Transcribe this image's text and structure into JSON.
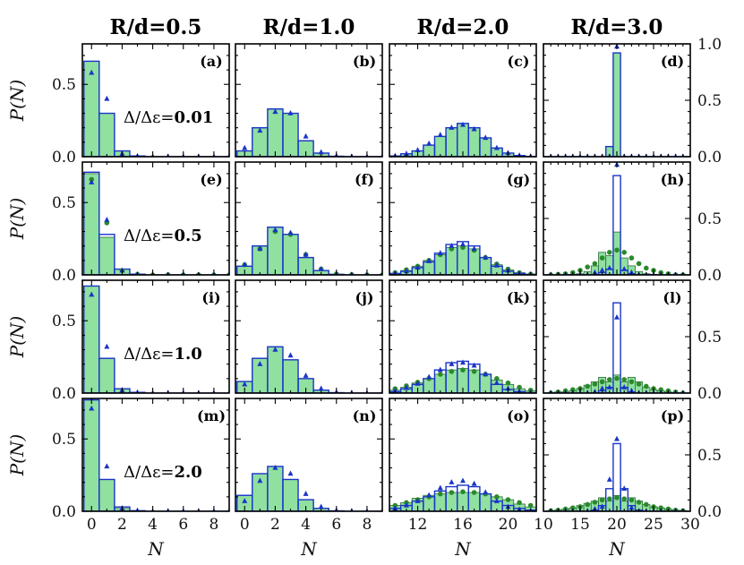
{
  "chart_data": {
    "type": "bar",
    "layout": "4x4 grid of histograms",
    "columns": [
      {
        "title": "R/d=0.5",
        "xlim": [
          -0.6,
          9
        ],
        "xticks": [
          0,
          2,
          4,
          6,
          8
        ]
      },
      {
        "title": "R/d=1.0",
        "xlim": [
          -0.6,
          9
        ],
        "xticks": [
          0,
          2,
          4,
          6,
          8
        ]
      },
      {
        "title": "R/d=2.0",
        "xlim": [
          9.5,
          22.5
        ],
        "xticks": [
          12,
          16,
          20
        ]
      },
      {
        "title": "R/d=3.0",
        "xlim": [
          10,
          30
        ],
        "xticks": [
          10,
          15,
          20,
          25,
          30
        ]
      }
    ],
    "rows": [
      {
        "label": "Δ/Δε=0.01",
        "label_prefix": "Δ/Δε=",
        "label_value": "0.01"
      },
      {
        "label": "Δ/Δε=0.5",
        "label_prefix": "Δ/Δε=",
        "label_value": "0.5"
      },
      {
        "label": "Δ/Δε=1.0",
        "label_prefix": "Δ/Δε=",
        "label_value": "1.0"
      },
      {
        "label": "Δ/Δε=2.0",
        "label_prefix": "Δ/Δε=",
        "label_value": "2.0"
      }
    ],
    "xlabel": "N",
    "ylabel": "P(N)",
    "ylim_left": [
      0,
      0.78
    ],
    "ylim_right": [
      0,
      1.0
    ],
    "yticks_left": [
      "0.0",
      "0.5"
    ],
    "yticks_right_top": [
      "0.0",
      "0.5",
      "1.0"
    ],
    "yticks_right": [
      "0.0",
      "0.5"
    ],
    "colors": {
      "bar_fill": "#90e0a0",
      "bar_edge": "#1a35c8",
      "marker_blue": "#1a35c8",
      "marker_green": "#2a8a2a"
    },
    "panels": [
      {
        "label": "(a)",
        "x": [
          0,
          1,
          2,
          3,
          4,
          5,
          6,
          7,
          8,
          9
        ],
        "green_bars": [
          0.66,
          0.3,
          0.04,
          0.005,
          0,
          0,
          0,
          0,
          0,
          0
        ],
        "blue_bars": [
          0.66,
          0.3,
          0.04,
          0.005,
          0,
          0,
          0,
          0,
          0,
          0
        ],
        "blue_points": [
          0.58,
          0.4,
          0.02,
          0.003,
          0,
          0,
          0,
          0,
          0,
          0
        ],
        "green_points": []
      },
      {
        "label": "(b)",
        "x": [
          0,
          1,
          2,
          3,
          4,
          5,
          6,
          7,
          8,
          9
        ],
        "green_bars": [
          0.04,
          0.2,
          0.33,
          0.3,
          0.11,
          0.025,
          0.003,
          0,
          0,
          0
        ],
        "blue_bars": [
          0.04,
          0.2,
          0.33,
          0.3,
          0.11,
          0.025,
          0.003,
          0,
          0,
          0
        ],
        "blue_points": [
          0.06,
          0.18,
          0.31,
          0.3,
          0.14,
          0.03,
          0.005,
          0.001,
          0,
          0
        ],
        "green_points": []
      },
      {
        "label": "(c)",
        "x": [
          10,
          11,
          12,
          13,
          14,
          15,
          16,
          17,
          18,
          19,
          20,
          21,
          22
        ],
        "green_bars": [
          0.005,
          0.02,
          0.04,
          0.08,
          0.14,
          0.2,
          0.23,
          0.2,
          0.13,
          0.06,
          0.025,
          0.008,
          0.002
        ],
        "blue_bars": [
          0.005,
          0.02,
          0.04,
          0.08,
          0.14,
          0.2,
          0.23,
          0.2,
          0.13,
          0.06,
          0.025,
          0.008,
          0.002
        ],
        "blue_points": [
          0.005,
          0.02,
          0.045,
          0.09,
          0.15,
          0.2,
          0.22,
          0.19,
          0.13,
          0.06,
          0.025,
          0.008,
          0.002
        ],
        "green_points": []
      },
      {
        "label": "(d)",
        "x": [
          11,
          12,
          13,
          14,
          15,
          16,
          17,
          18,
          19,
          20,
          21,
          22,
          23,
          24,
          25,
          26,
          27,
          28,
          29
        ],
        "green_bars": [
          0,
          0,
          0,
          0,
          0,
          0,
          0,
          0,
          0.09,
          0.92,
          0,
          0,
          0,
          0,
          0,
          0,
          0,
          0,
          0
        ],
        "blue_bars": [
          0,
          0,
          0,
          0,
          0,
          0,
          0,
          0,
          0.09,
          0.92,
          0,
          0,
          0,
          0,
          0,
          0,
          0,
          0,
          0
        ],
        "blue_points": [
          0,
          0,
          0,
          0,
          0,
          0,
          0,
          0,
          0,
          0.99,
          0,
          0,
          0,
          0,
          0,
          0,
          0,
          0,
          0
        ],
        "green_points": []
      },
      {
        "label": "(e)",
        "x": [
          0,
          1,
          2,
          3,
          4,
          5,
          6,
          7,
          8,
          9
        ],
        "green_bars": [
          0.7,
          0.26,
          0.04,
          0.005,
          0,
          0,
          0,
          0,
          0,
          0
        ],
        "blue_bars": [
          0.71,
          0.28,
          0.04,
          0.005,
          0,
          0,
          0,
          0,
          0,
          0
        ],
        "blue_points": [
          0.64,
          0.38,
          0.03,
          0.003,
          0,
          0,
          0,
          0,
          0,
          0
        ],
        "green_points": [
          0.66,
          0.36,
          0.03,
          0.004,
          0,
          0,
          0,
          0,
          0,
          0
        ]
      },
      {
        "label": "(f)",
        "x": [
          0,
          1,
          2,
          3,
          4,
          5,
          6,
          7,
          8,
          9
        ],
        "green_bars": [
          0.06,
          0.2,
          0.33,
          0.28,
          0.12,
          0.03,
          0.004,
          0,
          0,
          0
        ],
        "blue_bars": [
          0.06,
          0.2,
          0.33,
          0.28,
          0.12,
          0.03,
          0.004,
          0,
          0,
          0
        ],
        "blue_points": [
          0.07,
          0.18,
          0.31,
          0.29,
          0.14,
          0.04,
          0.006,
          0.001,
          0,
          0
        ],
        "green_points": [
          0.07,
          0.18,
          0.3,
          0.28,
          0.14,
          0.04,
          0.006,
          0.001,
          0,
          0
        ]
      },
      {
        "label": "(g)",
        "x": [
          10,
          11,
          12,
          13,
          14,
          15,
          16,
          17,
          18,
          19,
          20,
          21,
          22
        ],
        "green_bars": [
          0.01,
          0.03,
          0.06,
          0.1,
          0.14,
          0.19,
          0.2,
          0.18,
          0.12,
          0.07,
          0.035,
          0.015,
          0.006
        ],
        "blue_bars": [
          0.01,
          0.025,
          0.05,
          0.09,
          0.15,
          0.21,
          0.23,
          0.2,
          0.12,
          0.06,
          0.025,
          0.01,
          0.003
        ],
        "blue_points": [
          0.01,
          0.025,
          0.05,
          0.095,
          0.15,
          0.2,
          0.21,
          0.18,
          0.12,
          0.065,
          0.03,
          0.01,
          0.003
        ],
        "green_points": [
          0.015,
          0.035,
          0.06,
          0.1,
          0.14,
          0.18,
          0.19,
          0.17,
          0.12,
          0.075,
          0.04,
          0.015,
          0.005
        ]
      },
      {
        "label": "(h)",
        "x": [
          11,
          12,
          13,
          14,
          15,
          16,
          17,
          18,
          19,
          20,
          21,
          22,
          23,
          24,
          25,
          26,
          27,
          28,
          29
        ],
        "green_bars": [
          0,
          0,
          0,
          0.005,
          0.01,
          0.03,
          0.08,
          0.2,
          0.17,
          0.38,
          0.15,
          0.08,
          0.03,
          0.01,
          0.005,
          0,
          0,
          0,
          0
        ],
        "blue_bars": [
          0,
          0,
          0,
          0,
          0,
          0,
          0,
          0.02,
          0.05,
          0.88,
          0.04,
          0.01,
          0,
          0,
          0,
          0,
          0,
          0,
          0
        ],
        "blue_points": [
          0,
          0,
          0,
          0,
          0,
          0,
          0.02,
          0.04,
          0.06,
          0.98,
          0.05,
          0.02,
          0,
          0,
          0,
          0,
          0,
          0,
          0
        ],
        "green_points": [
          0,
          0.005,
          0.01,
          0.02,
          0.04,
          0.07,
          0.1,
          0.15,
          0.2,
          0.22,
          0.2,
          0.15,
          0.1,
          0.06,
          0.04,
          0.02,
          0.01,
          0,
          0
        ]
      },
      {
        "label": "(i)",
        "x": [
          0,
          1,
          2,
          3,
          4,
          5,
          6,
          7,
          8,
          9
        ],
        "green_bars": [
          0.74,
          0.24,
          0.03,
          0.005,
          0,
          0,
          0,
          0,
          0,
          0
        ],
        "blue_bars": [
          0.74,
          0.24,
          0.03,
          0.005,
          0,
          0,
          0,
          0,
          0,
          0
        ],
        "blue_points": [
          0.68,
          0.32,
          0.02,
          0.003,
          0,
          0,
          0,
          0,
          0,
          0
        ],
        "green_points": []
      },
      {
        "label": "(j)",
        "x": [
          0,
          1,
          2,
          3,
          4,
          5,
          6,
          7,
          8,
          9
        ],
        "green_bars": [
          0.08,
          0.24,
          0.32,
          0.23,
          0.1,
          0.02,
          0.003,
          0,
          0,
          0
        ],
        "blue_bars": [
          0.08,
          0.24,
          0.32,
          0.23,
          0.1,
          0.02,
          0.003,
          0,
          0,
          0
        ],
        "blue_points": [
          0.06,
          0.2,
          0.3,
          0.26,
          0.12,
          0.03,
          0.005,
          0.001,
          0,
          0
        ],
        "green_points": []
      },
      {
        "label": "(k)",
        "x": [
          10,
          11,
          12,
          13,
          14,
          15,
          16,
          17,
          18,
          19,
          20,
          21,
          22
        ],
        "green_bars": [
          0.02,
          0.04,
          0.07,
          0.1,
          0.13,
          0.16,
          0.17,
          0.16,
          0.13,
          0.09,
          0.06,
          0.03,
          0.015
        ],
        "blue_bars": [
          0.01,
          0.03,
          0.06,
          0.1,
          0.16,
          0.21,
          0.22,
          0.2,
          0.13,
          0.06,
          0.025,
          0.01,
          0.003
        ],
        "blue_points": [
          0.015,
          0.035,
          0.065,
          0.11,
          0.16,
          0.2,
          0.21,
          0.19,
          0.13,
          0.07,
          0.03,
          0.012,
          0.004
        ],
        "green_points": [
          0.03,
          0.05,
          0.075,
          0.1,
          0.13,
          0.15,
          0.16,
          0.15,
          0.13,
          0.1,
          0.07,
          0.04,
          0.02
        ]
      },
      {
        "label": "(l)",
        "x": [
          11,
          12,
          13,
          14,
          15,
          16,
          17,
          18,
          19,
          20,
          21,
          22,
          23,
          24,
          25,
          26,
          27,
          28,
          29
        ],
        "green_bars": [
          0.005,
          0.01,
          0.01,
          0.02,
          0.04,
          0.07,
          0.1,
          0.14,
          0.1,
          0.16,
          0.1,
          0.14,
          0.1,
          0.05,
          0.03,
          0.02,
          0.01,
          0.005,
          0
        ],
        "blue_bars": [
          0,
          0,
          0,
          0,
          0,
          0,
          0,
          0.02,
          0.05,
          0.8,
          0.05,
          0.01,
          0,
          0,
          0,
          0,
          0,
          0,
          0
        ],
        "blue_points": [
          0,
          0,
          0,
          0,
          0,
          0,
          0.01,
          0.04,
          0.05,
          0.67,
          0.05,
          0.02,
          0,
          0,
          0,
          0,
          0,
          0,
          0
        ],
        "green_points": [
          0,
          0.01,
          0.02,
          0.03,
          0.04,
          0.06,
          0.08,
          0.1,
          0.12,
          0.13,
          0.12,
          0.1,
          0.08,
          0.06,
          0.04,
          0.03,
          0.02,
          0.01,
          0
        ]
      },
      {
        "label": "(m)",
        "x": [
          0,
          1,
          2,
          3,
          4,
          5,
          6,
          7,
          8,
          9
        ],
        "green_bars": [
          0.77,
          0.22,
          0.02,
          0.004,
          0,
          0,
          0,
          0,
          0,
          0
        ],
        "blue_bars": [
          0.77,
          0.22,
          0.03,
          0.004,
          0,
          0,
          0,
          0,
          0,
          0
        ],
        "blue_points": [
          0.71,
          0.31,
          0.02,
          0.003,
          0,
          0,
          0,
          0,
          0,
          0
        ],
        "green_points": []
      },
      {
        "label": "(n)",
        "x": [
          0,
          1,
          2,
          3,
          4,
          5,
          6,
          7,
          8,
          9
        ],
        "green_bars": [
          0.11,
          0.26,
          0.31,
          0.22,
          0.08,
          0.02,
          0.003,
          0,
          0,
          0
        ],
        "blue_bars": [
          0.11,
          0.26,
          0.31,
          0.22,
          0.08,
          0.02,
          0.003,
          0,
          0,
          0
        ],
        "blue_points": [
          0.07,
          0.21,
          0.3,
          0.26,
          0.12,
          0.03,
          0.005,
          0.001,
          0,
          0
        ],
        "green_points": []
      },
      {
        "label": "(o)",
        "x": [
          10,
          11,
          12,
          13,
          14,
          15,
          16,
          17,
          18,
          19,
          20,
          21,
          22
        ],
        "green_bars": [
          0.04,
          0.06,
          0.09,
          0.11,
          0.12,
          0.13,
          0.13,
          0.13,
          0.12,
          0.1,
          0.08,
          0.05,
          0.03
        ],
        "blue_bars": [
          0.02,
          0.04,
          0.07,
          0.1,
          0.14,
          0.17,
          0.18,
          0.17,
          0.12,
          0.07,
          0.04,
          0.02,
          0.008
        ],
        "blue_points": [
          0.02,
          0.04,
          0.07,
          0.11,
          0.16,
          0.2,
          0.21,
          0.19,
          0.13,
          0.07,
          0.03,
          0.012,
          0.004
        ],
        "green_points": [
          0.04,
          0.06,
          0.08,
          0.1,
          0.12,
          0.13,
          0.135,
          0.13,
          0.12,
          0.1,
          0.08,
          0.06,
          0.04
        ]
      },
      {
        "label": "(p)",
        "x": [
          11,
          12,
          13,
          14,
          15,
          16,
          17,
          18,
          19,
          20,
          21,
          22,
          23,
          24,
          25,
          26,
          27,
          28,
          29
        ],
        "green_bars": [
          0.005,
          0.01,
          0.02,
          0.03,
          0.05,
          0.07,
          0.09,
          0.12,
          0.09,
          0.14,
          0.09,
          0.12,
          0.09,
          0.06,
          0.04,
          0.03,
          0.02,
          0.01,
          0.005
        ],
        "blue_bars": [
          0,
          0,
          0,
          0,
          0,
          0,
          0.01,
          0.05,
          0.2,
          0.6,
          0.2,
          0.05,
          0.01,
          0,
          0,
          0,
          0,
          0,
          0
        ],
        "blue_points": [
          0,
          0,
          0,
          0,
          0,
          0,
          0.02,
          0.04,
          0.28,
          0.64,
          0.2,
          0.03,
          0,
          0,
          0,
          0,
          0,
          0,
          0
        ],
        "green_points": [
          0.005,
          0.01,
          0.02,
          0.03,
          0.04,
          0.06,
          0.08,
          0.1,
          0.11,
          0.12,
          0.11,
          0.1,
          0.08,
          0.06,
          0.04,
          0.03,
          0.02,
          0.01,
          0.005
        ]
      }
    ]
  }
}
